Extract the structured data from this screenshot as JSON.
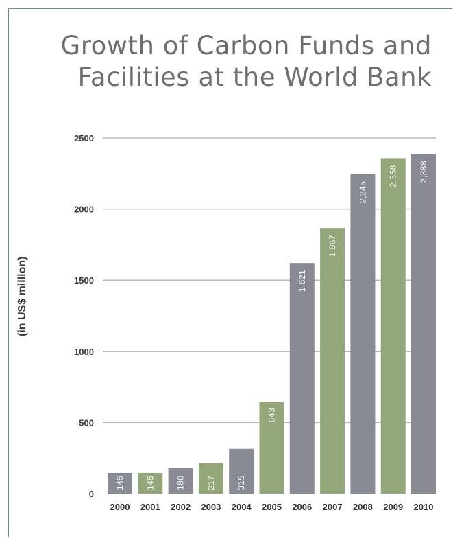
{
  "title": {
    "line1": "Growth of Carbon Funds and",
    "line2": "Facilities at the World Bank"
  },
  "chart_data": {
    "type": "bar",
    "title": "Growth of Carbon Funds and Facilities at the World Bank",
    "xlabel": "",
    "ylabel": "(in US$ million)",
    "ylim": [
      0,
      2500
    ],
    "yticks": [
      0,
      500,
      1000,
      1500,
      2000,
      2500
    ],
    "grid": true,
    "categories": [
      "2000",
      "2001",
      "2002",
      "2003",
      "2004",
      "2005",
      "2006",
      "2007",
      "2008",
      "2009",
      "2010"
    ],
    "values": [
      145,
      145,
      180,
      217,
      315,
      643,
      1621,
      1867,
      2245,
      2358,
      2388
    ],
    "data_labels": [
      "145",
      "145",
      "180",
      "217",
      "315",
      "643",
      "1,621",
      "1,867",
      "2,245",
      "2,358",
      "2,388"
    ],
    "bar_colors": [
      "#8a8a95",
      "#93a77a",
      "#8a8a95",
      "#93a77a",
      "#8a8a95",
      "#93a77a",
      "#8a8a95",
      "#93a77a",
      "#8a8a95",
      "#93a77a",
      "#8a8a95"
    ]
  }
}
